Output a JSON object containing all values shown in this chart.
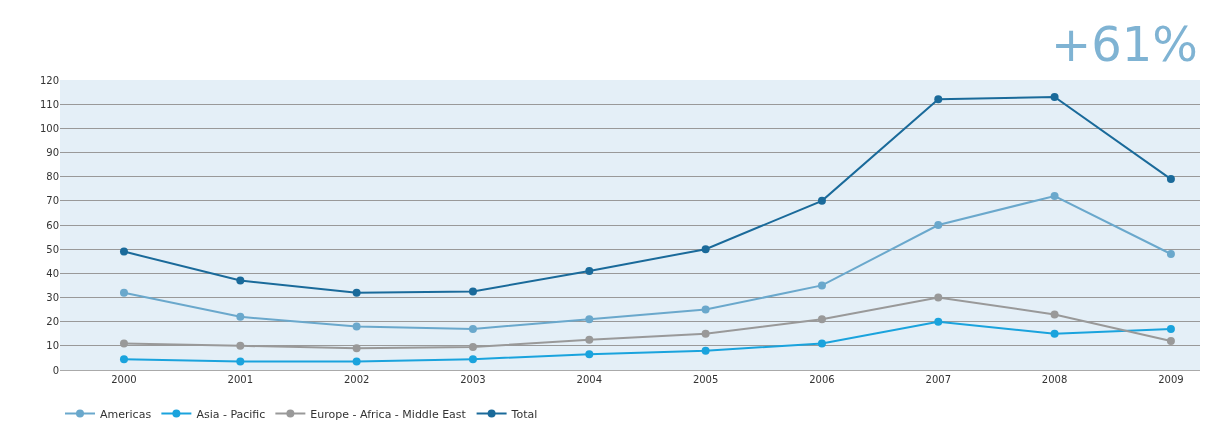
{
  "chart_data": {
    "type": "line",
    "categories": [
      "2000",
      "2001",
      "2002",
      "2003",
      "2004",
      "2005",
      "2006",
      "2007",
      "2008",
      "2009"
    ],
    "series": [
      {
        "name": "Americas",
        "color": "#6aa8cc",
        "values": [
          32,
          22,
          18,
          17,
          21,
          25,
          35,
          60,
          72,
          48
        ]
      },
      {
        "name": "Asia - Pacific",
        "color": "#1aa3dd",
        "values": [
          4.5,
          3.5,
          3.5,
          4.5,
          6.5,
          8,
          11,
          20,
          15,
          17
        ]
      },
      {
        "name": "Europe - Africa - Middle East",
        "color": "#999999",
        "values": [
          11,
          10,
          9,
          9.5,
          12.5,
          15,
          21,
          30,
          23,
          12
        ]
      },
      {
        "name": "Total",
        "color": "#1a6a9a",
        "values": [
          49,
          37,
          32,
          32.5,
          41,
          50,
          70,
          112,
          113,
          79
        ]
      }
    ],
    "ylim": [
      0,
      120
    ],
    "yticks": [
      0,
      10,
      20,
      30,
      40,
      50,
      60,
      70,
      80,
      90,
      100,
      110,
      120
    ],
    "grid": "y",
    "legend": "bottom left",
    "marker": "circle",
    "line_style": "solid",
    "annotations": [
      "+61%"
    ]
  }
}
